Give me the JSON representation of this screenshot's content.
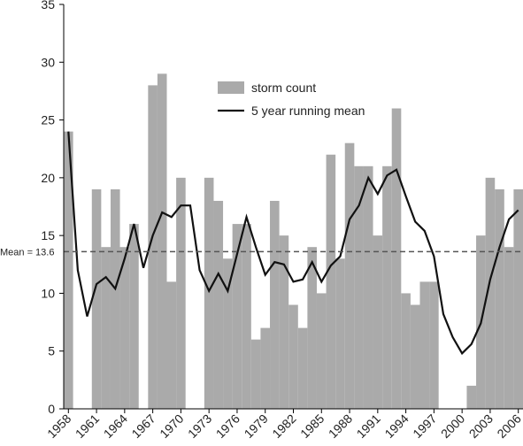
{
  "chart_data": {
    "type": "bar_line",
    "x": [
      1958,
      1959,
      1960,
      1961,
      1962,
      1963,
      1964,
      1965,
      1966,
      1967,
      1968,
      1969,
      1970,
      1971,
      1972,
      1973,
      1974,
      1975,
      1976,
      1977,
      1978,
      1979,
      1980,
      1981,
      1982,
      1983,
      1984,
      1985,
      1986,
      1987,
      1988,
      1989,
      1990,
      1991,
      1992,
      1993,
      1994,
      1995,
      1996,
      1997,
      1998,
      1999,
      2000,
      2001,
      2002,
      2003,
      2004,
      2005,
      2006
    ],
    "series": [
      {
        "name": "storm count",
        "type": "bar",
        "color": "#aaaaaa",
        "values": [
          24,
          0,
          0,
          19,
          14,
          19,
          14,
          16,
          0,
          28,
          29,
          11,
          20,
          0,
          0,
          20,
          18,
          13,
          16,
          16,
          6,
          7,
          18,
          15,
          9,
          7,
          14,
          10,
          22,
          13,
          23,
          21,
          21,
          15,
          21,
          26,
          10,
          9,
          11,
          11,
          0,
          0,
          0,
          2,
          15,
          20,
          19,
          14,
          19
        ]
      },
      {
        "name": "5 year running mean",
        "type": "line",
        "color": "#111111",
        "values": [
          24,
          12,
          8,
          10.8,
          11.4,
          10.4,
          13,
          16,
          12.2,
          15,
          17,
          16.6,
          17.6,
          17.6,
          12,
          10.2,
          11.7,
          10.2,
          13.4,
          16.6,
          14,
          11.6,
          12.7,
          12.5,
          11,
          11.2,
          12.7,
          11,
          12.4,
          13.2,
          16.4,
          17.6,
          20,
          18.6,
          20.2,
          20.7,
          18.4,
          16.2,
          15.4,
          13.2,
          8.2,
          6.2,
          4.8,
          5.6,
          7.4,
          11.2,
          14,
          16.4,
          17.2
        ]
      }
    ],
    "mean_line": {
      "value": 13.6,
      "label": "Mean = 13.6"
    },
    "xlim": [
      1957.5,
      2006.5
    ],
    "xticks": [
      1958,
      1961,
      1964,
      1967,
      1970,
      1973,
      1976,
      1979,
      1982,
      1985,
      1988,
      1991,
      1994,
      1997,
      2000,
      2003,
      2006
    ],
    "ylim": [
      0,
      35
    ],
    "yticks": [
      0,
      5,
      10,
      15,
      20,
      25,
      30,
      35
    ]
  }
}
